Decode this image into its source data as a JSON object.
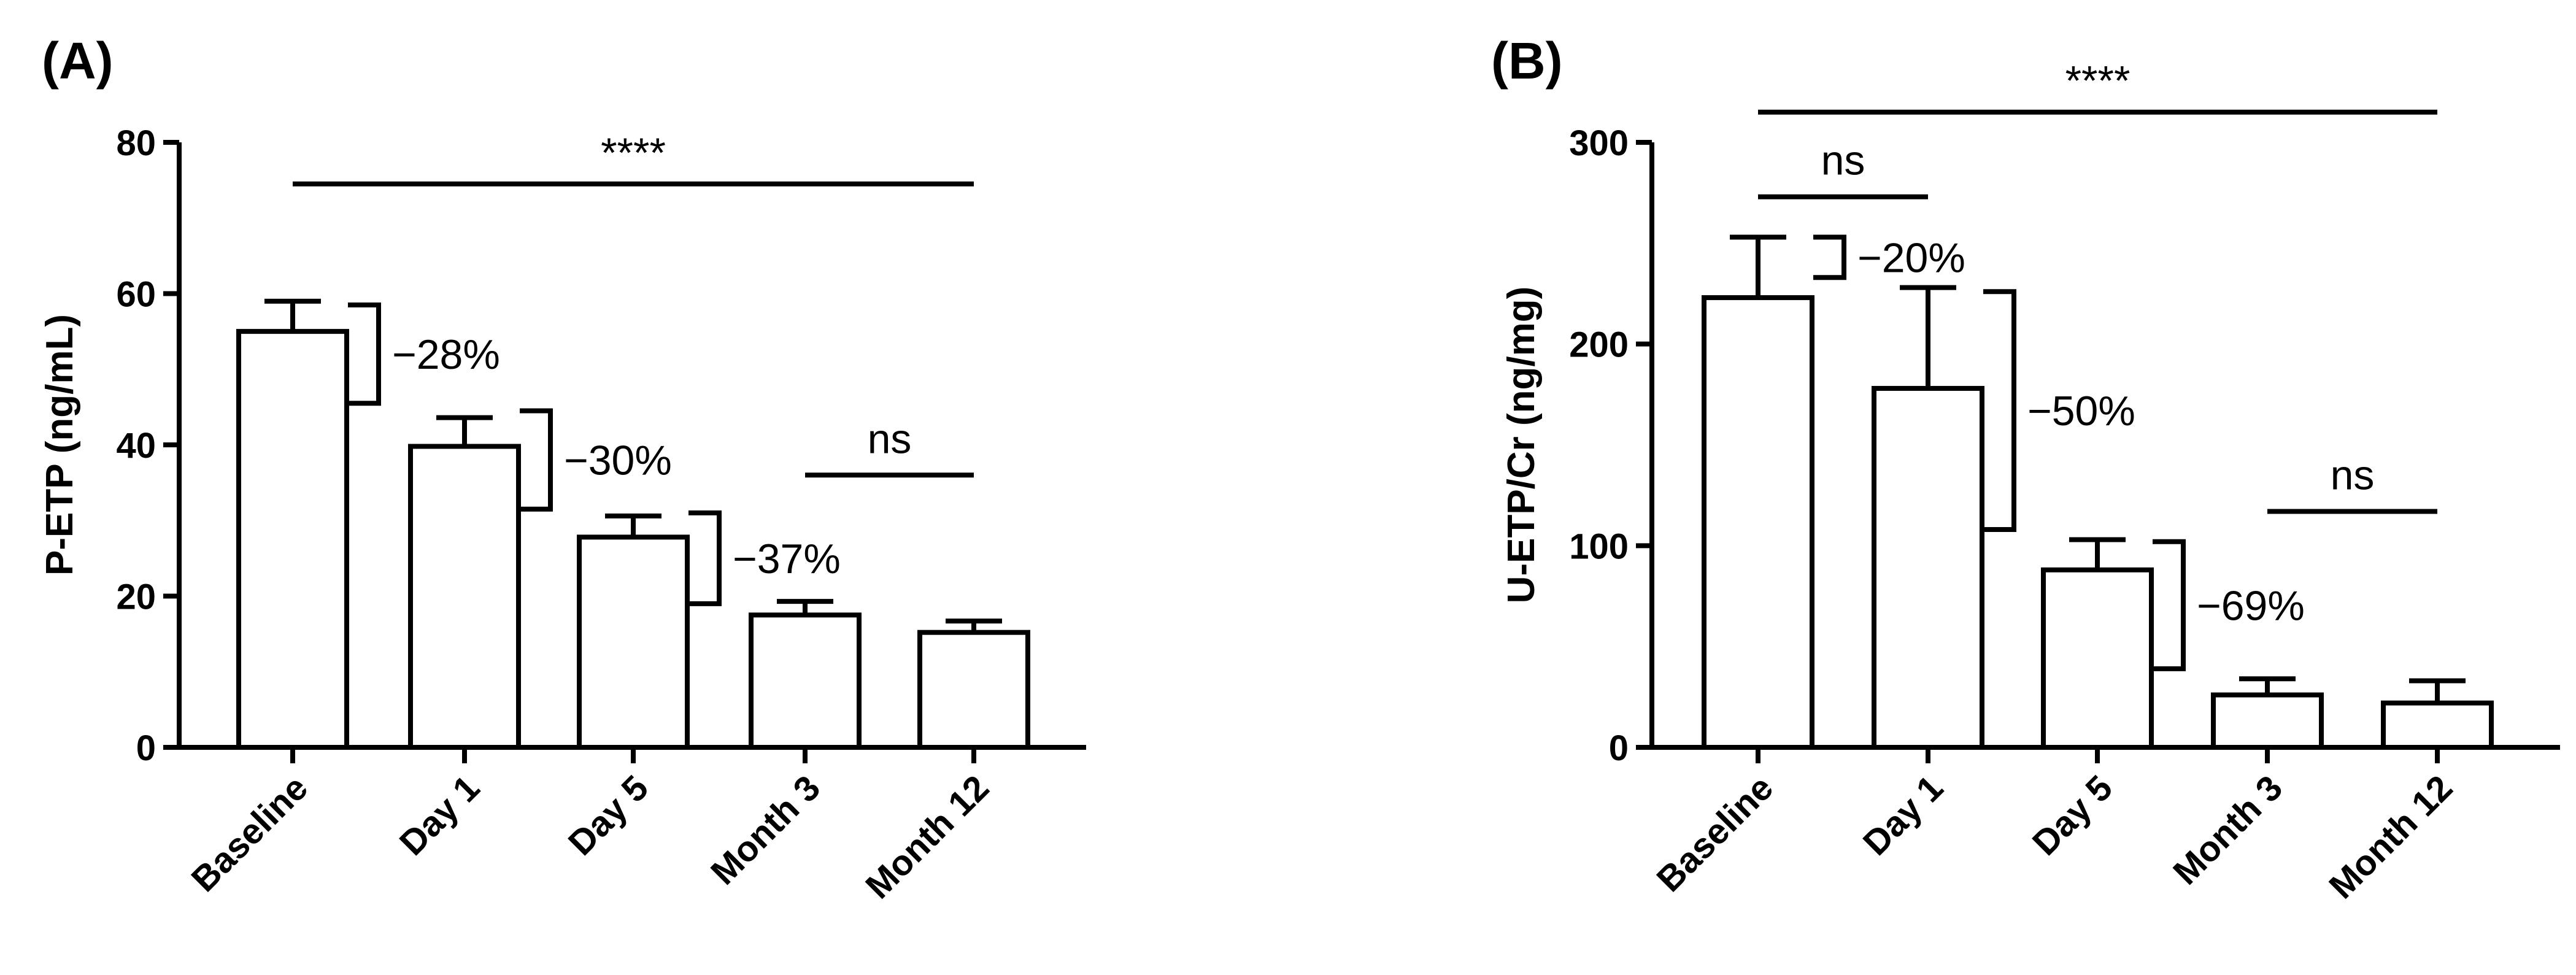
{
  "chart_data": [
    {
      "type": "bar",
      "panel_label": "(A)",
      "ylabel": "P-ETP (ng/mL)",
      "xlabel": "",
      "categories": [
        "Baseline",
        "Day 1",
        "Day 5",
        "Month 3",
        "Month 12"
      ],
      "values": [
        55,
        39.8,
        27.8,
        17.5,
        15.2
      ],
      "errors": [
        4,
        3.8,
        2.8,
        1.8,
        1.5
      ],
      "ylim": [
        0,
        80
      ],
      "yticks": [
        "0",
        "20",
        "40",
        "60",
        "80"
      ],
      "ytick_values": [
        0,
        20,
        40,
        60,
        80
      ],
      "annotations": [
        {
          "type": "line",
          "from": 0,
          "to": 4,
          "y": 74.5,
          "label": "****"
        },
        {
          "type": "bracket",
          "from": 0,
          "to": 1,
          "y_top": 58.5,
          "y_bottom": 45.5,
          "label": "−28%"
        },
        {
          "type": "bracket",
          "from": 1,
          "to": 2,
          "y_top": 44.5,
          "y_bottom": 31.5,
          "label": "−30%"
        },
        {
          "type": "bracket",
          "from": 2,
          "to": 3,
          "y_top": 31,
          "y_bottom": 19,
          "label": "−37%"
        },
        {
          "type": "line",
          "from": 3,
          "to": 4,
          "y": 36,
          "label": "ns"
        }
      ]
    },
    {
      "type": "bar",
      "panel_label": "(B)",
      "ylabel": "U-ETP/Cr (ng/mg)",
      "xlabel": "",
      "categories": [
        "Baseline",
        "Day 1",
        "Day 5",
        "Month 3",
        "Month 12"
      ],
      "values": [
        223,
        178,
        88,
        26,
        22
      ],
      "errors": [
        30,
        50,
        15,
        8,
        11
      ],
      "ylim": [
        0,
        300
      ],
      "yticks": [
        "0",
        "100",
        "200",
        "300"
      ],
      "ytick_values": [
        0,
        100,
        200,
        300
      ],
      "annotations": [
        {
          "type": "line",
          "from": 0,
          "to": 4,
          "y": 315,
          "label": "****"
        },
        {
          "type": "line",
          "from": 0,
          "to": 1,
          "y": 273,
          "label": "ns"
        },
        {
          "type": "bracket",
          "from": 0,
          "to": 1,
          "y_top": 253,
          "y_bottom": 233,
          "label": "−20%"
        },
        {
          "type": "bracket",
          "from": 1,
          "to": 2,
          "y_top": 226,
          "y_bottom": 108,
          "label": "−50%"
        },
        {
          "type": "bracket",
          "from": 2,
          "to": 3,
          "y_top": 102,
          "y_bottom": 39,
          "label": "−69%"
        },
        {
          "type": "line",
          "from": 3,
          "to": 4,
          "y": 117,
          "label": "ns"
        }
      ]
    }
  ]
}
